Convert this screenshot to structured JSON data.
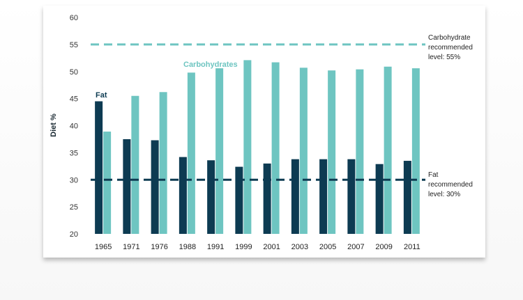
{
  "chart_data": {
    "type": "bar",
    "ylabel": "Diet %",
    "ylim": [
      20,
      60
    ],
    "yticks": [
      20,
      25,
      30,
      35,
      40,
      45,
      50,
      55,
      60
    ],
    "grid": false,
    "categories": [
      "1965",
      "1971",
      "1976",
      "1988",
      "1991",
      "1999",
      "2001",
      "2003",
      "2005",
      "2007",
      "2009",
      "2011"
    ],
    "series": [
      {
        "name": "Fat",
        "color": "#0d3b52",
        "values": [
          44.5,
          37.5,
          37.3,
          34.2,
          33.6,
          32.4,
          33.0,
          33.8,
          33.8,
          33.8,
          32.9,
          33.5
        ]
      },
      {
        "name": "Carbohydrates",
        "color": "#6ec5c1",
        "values": [
          38.9,
          45.5,
          46.2,
          49.8,
          50.6,
          52.1,
          51.7,
          50.7,
          50.2,
          50.4,
          50.9,
          50.6
        ]
      }
    ],
    "reference_lines": [
      {
        "value": 55,
        "color": "#6ec5c1",
        "style": "dashed",
        "label_lines": [
          "Carbohydrate",
          "recommended",
          "level: 55%"
        ]
      },
      {
        "value": 30,
        "color": "#0d3b52",
        "style": "dashed",
        "label_lines": [
          "Fat",
          "recommended",
          "level: 30%"
        ]
      }
    ]
  }
}
